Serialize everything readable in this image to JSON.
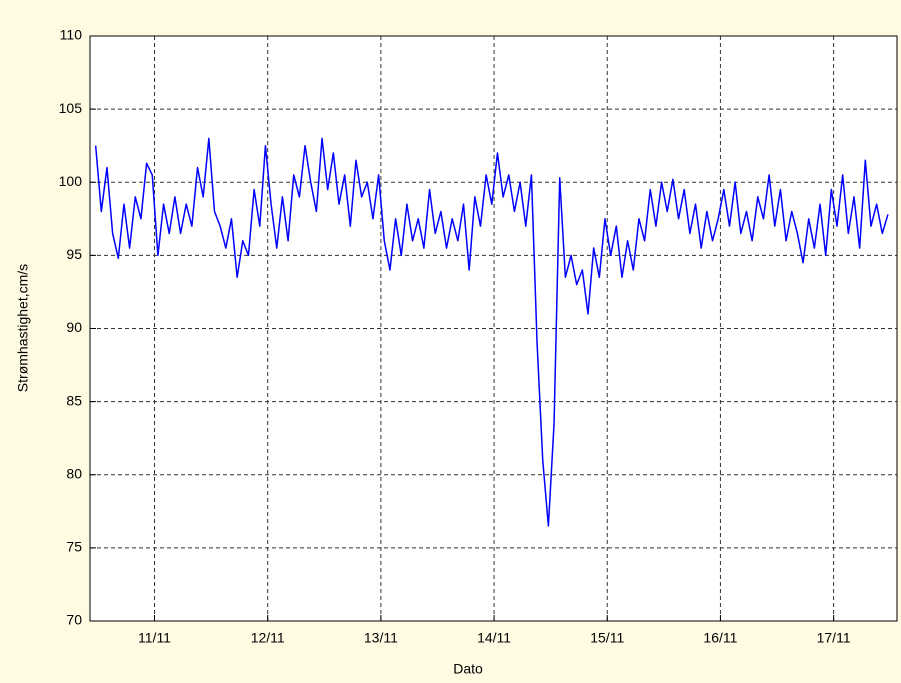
{
  "chart_data": {
    "type": "line",
    "xlabel": "Dato",
    "ylabel": "Strømhastighet,cm/s",
    "x": [
      10.48,
      10.53,
      10.58,
      10.63,
      10.68,
      10.73,
      10.78,
      10.83,
      10.88,
      10.93,
      10.98,
      11.03,
      11.08,
      11.13,
      11.18,
      11.23,
      11.28,
      11.33,
      11.38,
      11.43,
      11.48,
      11.53,
      11.58,
      11.63,
      11.68,
      11.73,
      11.78,
      11.83,
      11.88,
      11.93,
      11.98,
      12.03,
      12.08,
      12.13,
      12.18,
      12.23,
      12.28,
      12.33,
      12.38,
      12.43,
      12.48,
      12.53,
      12.58,
      12.63,
      12.68,
      12.73,
      12.78,
      12.83,
      12.88,
      12.93,
      12.98,
      13.03,
      13.08,
      13.13,
      13.18,
      13.23,
      13.28,
      13.33,
      13.38,
      13.43,
      13.48,
      13.53,
      13.58,
      13.63,
      13.68,
      13.73,
      13.78,
      13.83,
      13.88,
      13.93,
      13.98,
      14.03,
      14.08,
      14.13,
      14.18,
      14.23,
      14.28,
      14.33,
      14.38,
      14.43,
      14.48,
      14.53,
      14.58,
      14.63,
      14.68,
      14.73,
      14.78,
      14.83,
      14.88,
      14.93,
      14.98,
      15.03,
      15.08,
      15.13,
      15.18,
      15.23,
      15.28,
      15.33,
      15.38,
      15.43,
      15.48,
      15.53,
      15.58,
      15.63,
      15.68,
      15.73,
      15.78,
      15.83,
      15.88,
      15.93,
      15.98,
      16.03,
      16.08,
      16.13,
      16.18,
      16.23,
      16.28,
      16.33,
      16.38,
      16.43,
      16.48,
      16.53,
      16.58,
      16.63,
      16.68,
      16.73,
      16.78,
      16.83,
      16.88,
      16.93,
      16.98,
      17.03,
      17.08,
      17.13,
      17.18,
      17.23,
      17.28,
      17.33,
      17.38,
      17.43,
      17.48
    ],
    "series": [
      {
        "name": "Strømhastighet",
        "color": "#0000ff",
        "values": [
          102.5,
          98,
          101,
          96.5,
          94.8,
          98.5,
          95.5,
          99,
          97.5,
          101.3,
          100.5,
          95,
          98.5,
          96.5,
          99,
          96.5,
          98.5,
          97,
          101,
          99,
          103,
          98,
          97,
          95.5,
          97.5,
          93.5,
          96,
          95,
          99.5,
          97,
          102.5,
          98.5,
          95.5,
          99,
          96,
          100.5,
          99,
          102.5,
          100,
          98,
          103,
          99.5,
          102,
          98.5,
          100.5,
          97,
          101.5,
          99,
          100,
          97.5,
          100.5,
          96,
          94,
          97.5,
          95,
          98.5,
          96,
          97.5,
          95.5,
          99.5,
          96.5,
          98,
          95.5,
          97.5,
          96,
          98.5,
          94,
          99,
          97,
          100.5,
          98.5,
          102,
          99,
          100.5,
          98,
          100,
          97,
          100.5,
          89,
          81,
          76.5,
          83.5,
          100.3,
          93.5,
          95,
          93,
          94,
          91,
          95.5,
          93.5,
          97.5,
          95,
          97,
          93.5,
          96,
          94,
          97.5,
          96,
          99.5,
          97,
          100,
          98,
          100.2,
          97.5,
          99.5,
          96.5,
          98.5,
          95.5,
          98,
          96,
          97.5,
          99.5,
          97,
          100,
          96.5,
          98,
          96,
          99,
          97.5,
          100.5,
          97,
          99.5,
          96,
          98,
          96.5,
          94.5,
          97.5,
          95.5,
          98.5,
          95,
          99.5,
          97,
          100.5,
          96.5,
          99,
          95.5,
          101.5,
          97,
          98.5,
          96.5,
          97.8
        ]
      }
    ],
    "xlim": [
      10.43,
      17.56
    ],
    "xticks": [
      {
        "value": 11,
        "label": "11/11"
      },
      {
        "value": 12,
        "label": "12/11"
      },
      {
        "value": 13,
        "label": "13/11"
      },
      {
        "value": 14,
        "label": "14/11"
      },
      {
        "value": 15,
        "label": "15/11"
      },
      {
        "value": 16,
        "label": "16/11"
      },
      {
        "value": 17,
        "label": "17/11"
      }
    ],
    "ylim": [
      70,
      110
    ],
    "yticks": [
      70,
      75,
      80,
      85,
      90,
      95,
      100,
      105,
      110
    ],
    "grid": true
  }
}
